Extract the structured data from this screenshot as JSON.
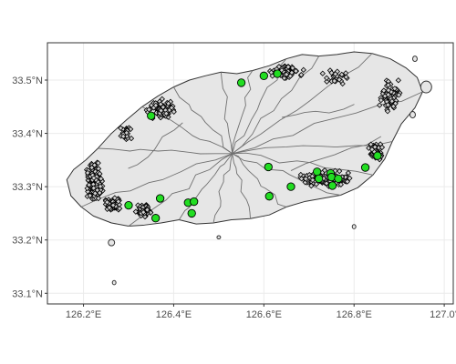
{
  "chart_data": {
    "type": "scatter",
    "title": "",
    "xlabel": "",
    "ylabel": "",
    "xlim": [
      126.12,
      127.02
    ],
    "ylim": [
      33.08,
      33.57
    ],
    "grid": true,
    "legend": "none",
    "x_ticks": [
      {
        "value": 126.2,
        "label": "126.2°E"
      },
      {
        "value": 126.4,
        "label": "126.4°E"
      },
      {
        "value": 126.6,
        "label": "126.6°E"
      },
      {
        "value": 126.8,
        "label": "126.8°E"
      },
      {
        "value": 127.0,
        "label": "127.0°"
      }
    ],
    "y_ticks": [
      {
        "value": 33.1,
        "label": "33.1°N"
      },
      {
        "value": 33.2,
        "label": "33.2°N"
      },
      {
        "value": 33.3,
        "label": "33.3°N"
      },
      {
        "value": 33.4,
        "label": "33.4°N"
      },
      {
        "value": 33.5,
        "label": "33.5°N"
      }
    ],
    "colors": {
      "land": "#e6e6e6",
      "border": "#333333",
      "district": "#707070",
      "grid": "#ebebeb",
      "panel_border": "#333333",
      "site_fill": "#d0d0d0",
      "highlight_fill": "#22dd22"
    },
    "coastline": [
      [
        126.163,
        33.313
      ],
      [
        126.172,
        33.283
      ],
      [
        126.195,
        33.262
      ],
      [
        126.222,
        33.245
      ],
      [
        126.262,
        33.232
      ],
      [
        126.3,
        33.226
      ],
      [
        126.335,
        33.228
      ],
      [
        126.372,
        33.232
      ],
      [
        126.412,
        33.238
      ],
      [
        126.45,
        33.23
      ],
      [
        126.488,
        33.232
      ],
      [
        126.528,
        33.238
      ],
      [
        126.57,
        33.24
      ],
      [
        126.612,
        33.247
      ],
      [
        126.65,
        33.262
      ],
      [
        126.69,
        33.272
      ],
      [
        126.73,
        33.278
      ],
      [
        126.77,
        33.284
      ],
      [
        126.808,
        33.298
      ],
      [
        126.842,
        33.322
      ],
      [
        126.868,
        33.352
      ],
      [
        126.885,
        33.385
      ],
      [
        126.905,
        33.418
      ],
      [
        126.935,
        33.448
      ],
      [
        126.952,
        33.478
      ],
      [
        126.94,
        33.505
      ],
      [
        126.915,
        33.523
      ],
      [
        126.88,
        33.54
      ],
      [
        126.84,
        33.55
      ],
      [
        126.8,
        33.553
      ],
      [
        126.762,
        33.548
      ],
      [
        126.722,
        33.545
      ],
      [
        126.685,
        33.548
      ],
      [
        126.65,
        33.54
      ],
      [
        126.612,
        33.527
      ],
      [
        126.575,
        33.518
      ],
      [
        126.54,
        33.512
      ],
      [
        126.505,
        33.515
      ],
      [
        126.47,
        33.508
      ],
      [
        126.435,
        33.5
      ],
      [
        126.4,
        33.487
      ],
      [
        126.365,
        33.47
      ],
      [
        126.33,
        33.45
      ],
      [
        126.295,
        33.425
      ],
      [
        126.262,
        33.4
      ],
      [
        126.232,
        33.372
      ],
      [
        126.205,
        33.35
      ],
      [
        126.178,
        33.332
      ]
    ],
    "islands": [
      {
        "center": [
          126.262,
          33.195
        ],
        "rx": 0.007,
        "ry": 0.006
      },
      {
        "center": [
          126.268,
          33.12
        ],
        "rx": 0.004,
        "ry": 0.004
      },
      {
        "center": [
          126.96,
          33.487
        ],
        "rx": 0.012,
        "ry": 0.011
      },
      {
        "center": [
          126.935,
          33.54
        ],
        "rx": 0.005,
        "ry": 0.005
      },
      {
        "center": [
          126.8,
          33.225
        ],
        "rx": 0.004,
        "ry": 0.004
      },
      {
        "center": [
          126.5,
          33.205
        ],
        "rx": 0.004,
        "ry": 0.003
      },
      {
        "center": [
          126.93,
          33.435
        ],
        "rx": 0.006,
        "ry": 0.006
      }
    ],
    "highlight_points": [
      {
        "x": 126.55,
        "y": 33.495
      },
      {
        "x": 126.6,
        "y": 33.508
      },
      {
        "x": 126.63,
        "y": 33.512
      },
      {
        "x": 126.35,
        "y": 33.433
      },
      {
        "x": 126.37,
        "y": 33.278
      },
      {
        "x": 126.3,
        "y": 33.265
      },
      {
        "x": 126.36,
        "y": 33.241
      },
      {
        "x": 126.432,
        "y": 33.27
      },
      {
        "x": 126.445,
        "y": 33.272
      },
      {
        "x": 126.44,
        "y": 33.25
      },
      {
        "x": 126.61,
        "y": 33.337
      },
      {
        "x": 126.612,
        "y": 33.282
      },
      {
        "x": 126.66,
        "y": 33.3
      },
      {
        "x": 126.718,
        "y": 33.328
      },
      {
        "x": 126.722,
        "y": 33.315
      },
      {
        "x": 126.748,
        "y": 33.325
      },
      {
        "x": 126.75,
        "y": 33.318
      },
      {
        "x": 126.752,
        "y": 33.302
      },
      {
        "x": 126.765,
        "y": 33.315
      },
      {
        "x": 126.825,
        "y": 33.336
      },
      {
        "x": 126.852,
        "y": 33.358
      }
    ]
  }
}
